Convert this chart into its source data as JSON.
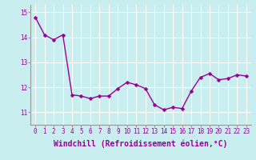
{
  "x": [
    0,
    1,
    2,
    3,
    4,
    5,
    6,
    7,
    8,
    9,
    10,
    11,
    12,
    13,
    14,
    15,
    16,
    17,
    18,
    19,
    20,
    21,
    22,
    23
  ],
  "y": [
    14.8,
    14.1,
    13.9,
    14.1,
    11.7,
    11.65,
    11.55,
    11.65,
    11.65,
    11.95,
    12.2,
    12.1,
    11.95,
    11.3,
    11.1,
    11.2,
    11.15,
    11.85,
    12.4,
    12.55,
    12.3,
    12.35,
    12.5,
    12.45
  ],
  "line_color": "#990099",
  "marker": "D",
  "marker_size": 2.5,
  "bg_color": "#c8eef0",
  "grid_color": "#aadddd",
  "xlabel": "Windchill (Refroidissement éolien,°C)",
  "ylim": [
    10.5,
    15.3
  ],
  "xlim": [
    -0.5,
    23.5
  ],
  "yticks": [
    11,
    12,
    13,
    14,
    15
  ],
  "xticks": [
    0,
    1,
    2,
    3,
    4,
    5,
    6,
    7,
    8,
    9,
    10,
    11,
    12,
    13,
    14,
    15,
    16,
    17,
    18,
    19,
    20,
    21,
    22,
    23
  ],
  "tick_fontsize": 5.5,
  "xlabel_fontsize": 7,
  "line_width": 1.0,
  "spine_color": "#999999"
}
